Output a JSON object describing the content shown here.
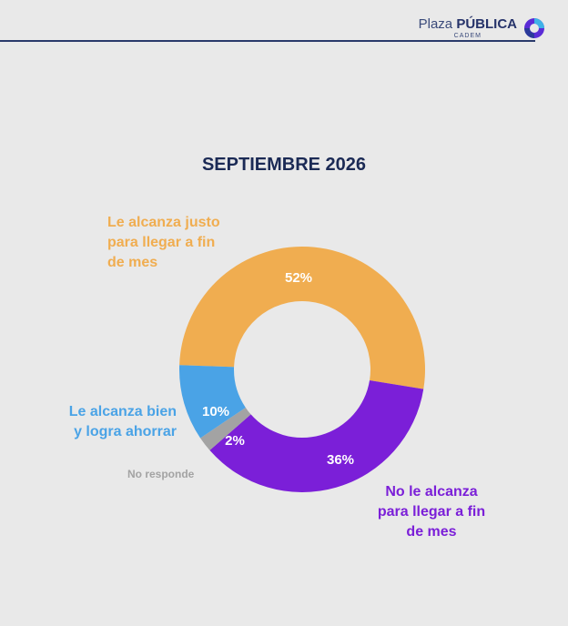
{
  "brand": {
    "name_light": "Plaza",
    "name_bold": "PÚBLICA",
    "sub": "CADEM"
  },
  "chart_data": {
    "type": "pie",
    "title": "SEPTIEMBRE 2026",
    "slices": [
      {
        "label": "Le alcanza justo para llegar a fin de mes",
        "value": 52,
        "value_label": "52%",
        "color": "#f0ad50"
      },
      {
        "label": "No le alcanza para llegar a fin de mes",
        "value": 36,
        "value_label": "36%",
        "color": "#7b1fd8"
      },
      {
        "label": "No responde",
        "value": 2,
        "value_label": "2%",
        "color": "#a3a3a3"
      },
      {
        "label": "Le alcanza bien y logra ahorrar",
        "value": 10,
        "value_label": "10%",
        "color": "#4aa3e6"
      }
    ]
  },
  "labels": {
    "justo": [
      "Le alcanza justo",
      "para llegar a fin",
      "de mes"
    ],
    "no_alcanza": [
      "No le alcanza",
      "para llegar a fin",
      "de mes"
    ],
    "bien": [
      "Le alcanza bien",
      "y logra ahorrar"
    ],
    "no_responde": "No responde"
  }
}
